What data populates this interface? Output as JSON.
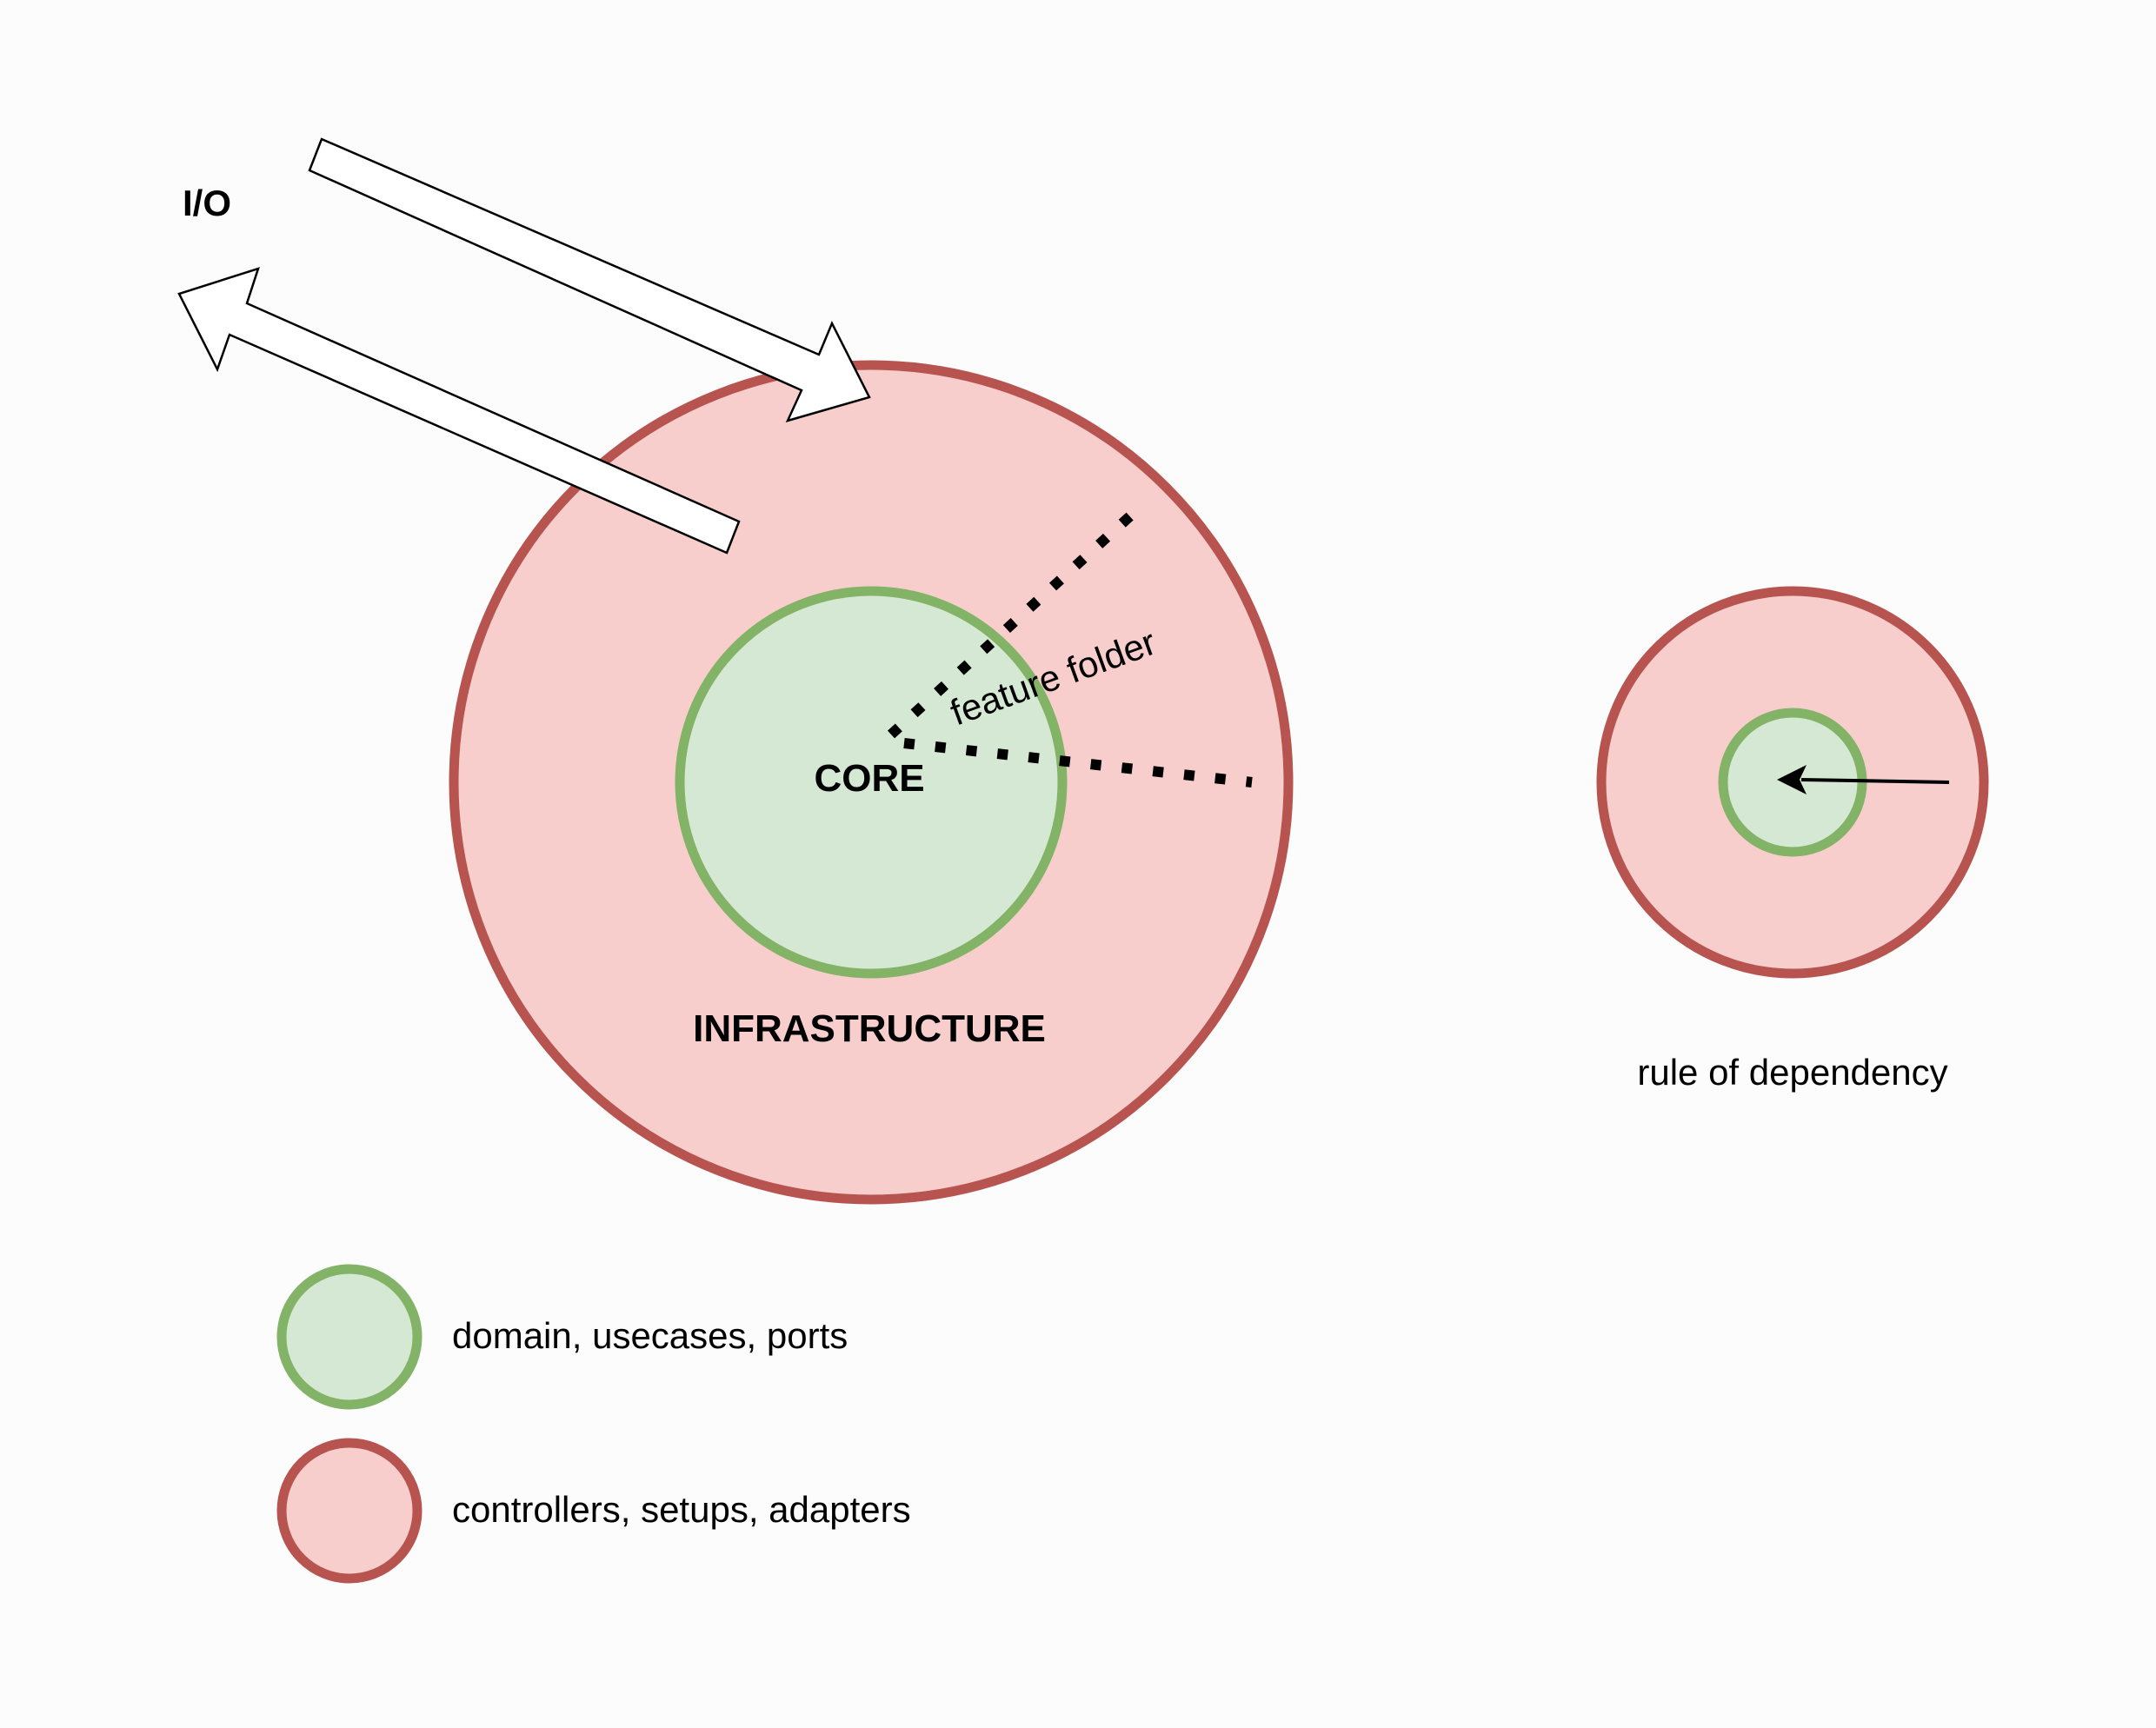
{
  "labels": {
    "io": "I/O",
    "core": "CORE",
    "infrastructure": "INFRASTRUCTURE",
    "feature_folder": "feature folder",
    "rule_of_dependency": "rule of dependency"
  },
  "legend": [
    {
      "label": "domain, usecases, ports",
      "color": "core"
    },
    {
      "label": "controllers, setups, adapters",
      "color": "infrastructure"
    }
  ],
  "colors": {
    "core_fill": "#d5e8d4",
    "core_stroke": "#82b366",
    "infra_fill": "#f8cecc",
    "infra_stroke": "#b85450",
    "background": "#fcfcfc"
  }
}
